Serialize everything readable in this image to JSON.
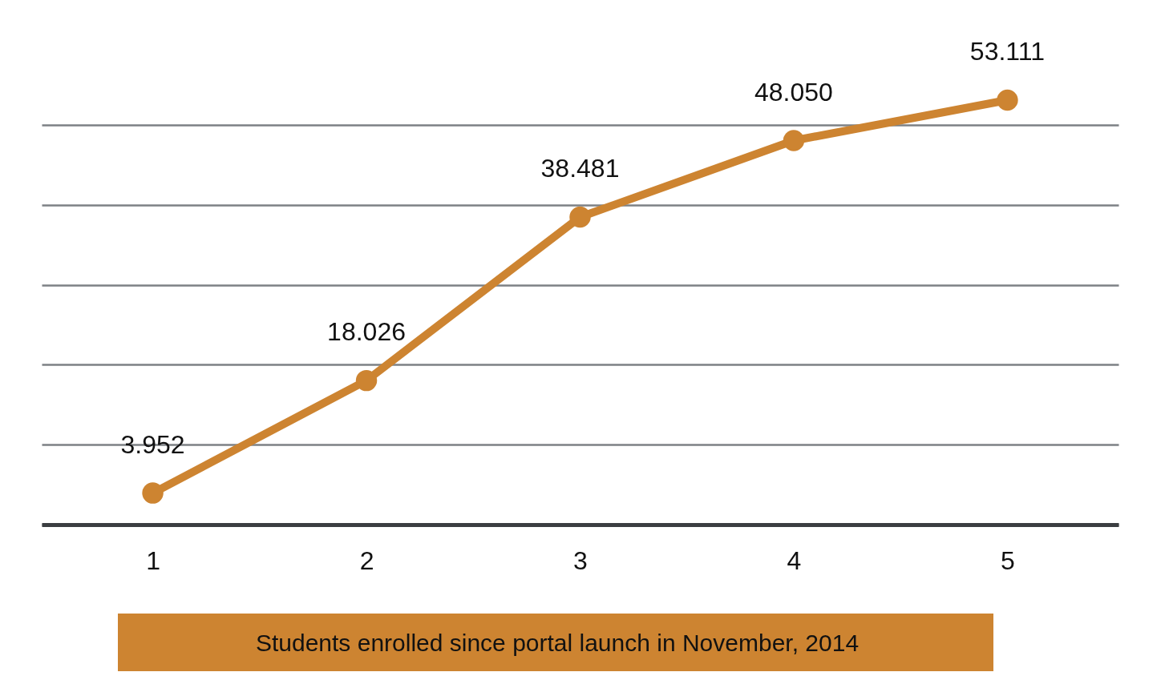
{
  "chart_data": {
    "type": "line",
    "categories": [
      "1",
      "2",
      "3",
      "4",
      "5"
    ],
    "values": [
      3952,
      18026,
      38481,
      48050,
      53111
    ],
    "value_labels": [
      "3.952",
      "18.026",
      "38.481",
      "48.050",
      "53.111"
    ],
    "color": "#cd8431",
    "yticks": [
      {
        "value": 0,
        "label": null
      },
      {
        "value": 10000,
        "label": null
      },
      {
        "value": 20000,
        "label": null
      },
      {
        "value": 30000,
        "label": null
      },
      {
        "value": 40000,
        "label": null
      },
      {
        "value": 50000,
        "label": null
      }
    ],
    "grid": "y",
    "tick_labels": "x",
    "marker": "circle",
    "line_style": "solid",
    "annotations": [
      "Students enrolled since portal launch in November, 2014"
    ]
  }
}
